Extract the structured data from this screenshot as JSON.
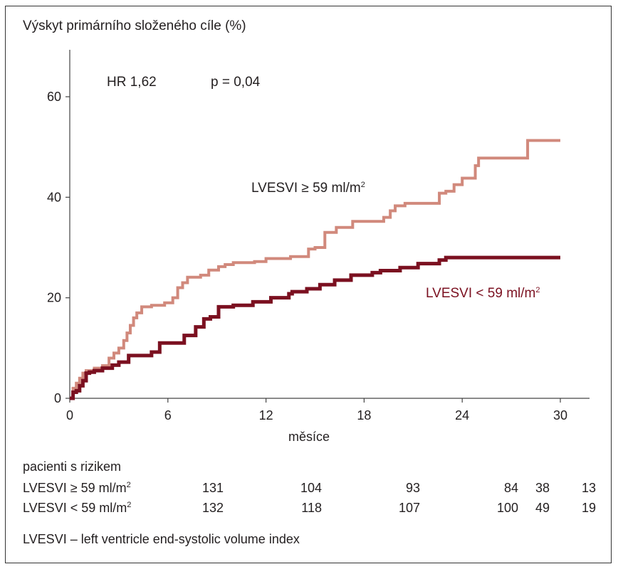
{
  "chart_data": {
    "type": "line",
    "ylabel": "Výskyt primárního složeného cíle (%)",
    "xlabel": "měsíce",
    "xlim": [
      0,
      30
    ],
    "ylim": [
      0,
      60
    ],
    "xticks": [
      0,
      6,
      12,
      18,
      24,
      30
    ],
    "yticks": [
      0,
      20,
      40,
      60
    ],
    "annotations": [
      "HR 1,62",
      "p = 0,04"
    ],
    "grid": false,
    "series": [
      {
        "name": "LVESVI ≥ 59 ml/m²",
        "color": "#d1897c",
        "x": [
          0,
          0.2,
          0.4,
          0.6,
          0.8,
          1.0,
          1.5,
          2.0,
          2.4,
          2.7,
          3.0,
          3.3,
          3.5,
          3.7,
          3.9,
          4.1,
          4.4,
          5.0,
          5.8,
          6.3,
          6.6,
          6.9,
          7.2,
          8.0,
          8.5,
          9.1,
          9.5,
          10.0,
          11.3,
          12.0,
          13.5,
          14.6,
          15.0,
          15.6,
          16.3,
          17.3,
          19.2,
          19.6,
          19.9,
          20.5,
          21.4,
          22.6,
          23.0,
          23.5,
          24.0,
          24.8,
          25.0,
          27.2,
          28.0,
          29.0,
          30.0
        ],
        "y": [
          0,
          2,
          3,
          4,
          5,
          5.5,
          6,
          6.5,
          8,
          9,
          10,
          11.5,
          13,
          14.5,
          16,
          17,
          18.2,
          18.5,
          19,
          20,
          22,
          23,
          24.1,
          24.5,
          25.5,
          26.2,
          26.6,
          27,
          27.2,
          27.8,
          28.2,
          29.7,
          30,
          33,
          34,
          35.2,
          36,
          37.3,
          38.3,
          38.8,
          38.8,
          40.8,
          41.2,
          42.5,
          43.8,
          46.3,
          47.8,
          47.8,
          51.3,
          51.3,
          51.3
        ]
      },
      {
        "name": "LVESVI < 59 ml/m²",
        "color": "#7b1020",
        "x": [
          0,
          0.2,
          0.4,
          0.6,
          0.8,
          1.0,
          1.2,
          1.5,
          2.0,
          2.6,
          3.0,
          3.6,
          5.0,
          5.5,
          7.0,
          7.7,
          8.2,
          8.6,
          9.1,
          10.0,
          11.2,
          12.3,
          13.4,
          13.6,
          14.5,
          15.3,
          16.2,
          17.2,
          18.5,
          19.0,
          20.2,
          21.3,
          22.6,
          23.0,
          30.0
        ],
        "y": [
          0,
          1.2,
          1.5,
          2.5,
          3.5,
          5,
          5.2,
          5.5,
          6,
          6.6,
          7.2,
          8.5,
          9.2,
          11,
          12.5,
          14.2,
          15.8,
          16.2,
          18.2,
          18.5,
          19.2,
          20,
          20.8,
          21.2,
          21.8,
          22.6,
          23.5,
          24.5,
          25,
          25.4,
          26,
          26.8,
          27.5,
          28,
          28
        ]
      }
    ]
  },
  "plot": {
    "hr": "HR 1,62",
    "p": "p = 0,04",
    "label_high": "LVESVI ≥ 59 ml/m",
    "label_low": "LVESVI < 59 ml/m",
    "sup": "2"
  },
  "risk_table": {
    "title": "pacienti s rizikem",
    "rows": [
      {
        "label": "LVESVI ≥ 59 ml/m",
        "sup": "2",
        "values": [
          "131",
          "104",
          "93",
          "84",
          "38",
          "13"
        ]
      },
      {
        "label": "LVESVI < 59 ml/m",
        "sup": "2",
        "values": [
          "132",
          "118",
          "107",
          "100",
          "49",
          "19"
        ]
      }
    ]
  },
  "footnote": "LVESVI – left ventricle end-systolic volume index"
}
